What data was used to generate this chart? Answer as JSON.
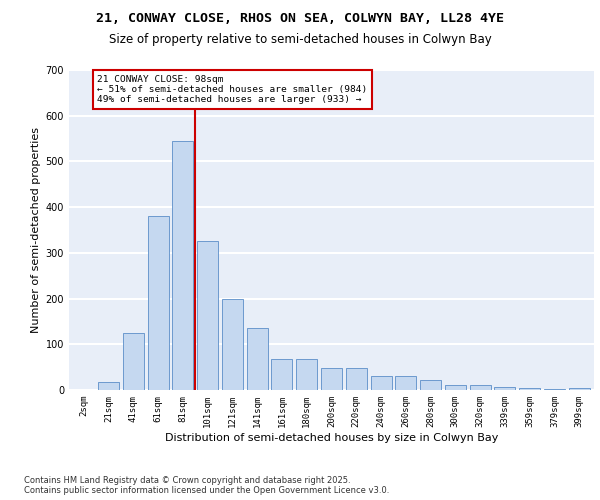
{
  "title_line1": "21, CONWAY CLOSE, RHOS ON SEA, COLWYN BAY, LL28 4YE",
  "title_line2": "Size of property relative to semi-detached houses in Colwyn Bay",
  "xlabel": "Distribution of semi-detached houses by size in Colwyn Bay",
  "ylabel": "Number of semi-detached properties",
  "categories": [
    "2sqm",
    "21sqm",
    "41sqm",
    "61sqm",
    "81sqm",
    "101sqm",
    "121sqm",
    "141sqm",
    "161sqm",
    "180sqm",
    "200sqm",
    "220sqm",
    "240sqm",
    "260sqm",
    "280sqm",
    "300sqm",
    "320sqm",
    "339sqm",
    "359sqm",
    "379sqm",
    "399sqm"
  ],
  "values": [
    0,
    18,
    125,
    380,
    545,
    325,
    200,
    135,
    68,
    68,
    48,
    48,
    30,
    30,
    22,
    12,
    10,
    6,
    5,
    2,
    4
  ],
  "bar_color": "#c5d8f0",
  "bar_edge_color": "#5b8ec9",
  "vline_color": "#cc0000",
  "annotation_text": "21 CONWAY CLOSE: 98sqm\n← 51% of semi-detached houses are smaller (984)\n49% of semi-detached houses are larger (933) →",
  "annotation_box_color": "#ffffff",
  "annotation_box_edge": "#cc0000",
  "ylim": [
    0,
    700
  ],
  "yticks": [
    0,
    100,
    200,
    300,
    400,
    500,
    600,
    700
  ],
  "footnote": "Contains HM Land Registry data © Crown copyright and database right 2025.\nContains public sector information licensed under the Open Government Licence v3.0.",
  "background_color": "#e8eef8",
  "grid_color": "#ffffff",
  "title_fontsize": 9.5,
  "subtitle_fontsize": 8.5,
  "axis_label_fontsize": 8,
  "tick_fontsize": 6.5,
  "footnote_fontsize": 6
}
